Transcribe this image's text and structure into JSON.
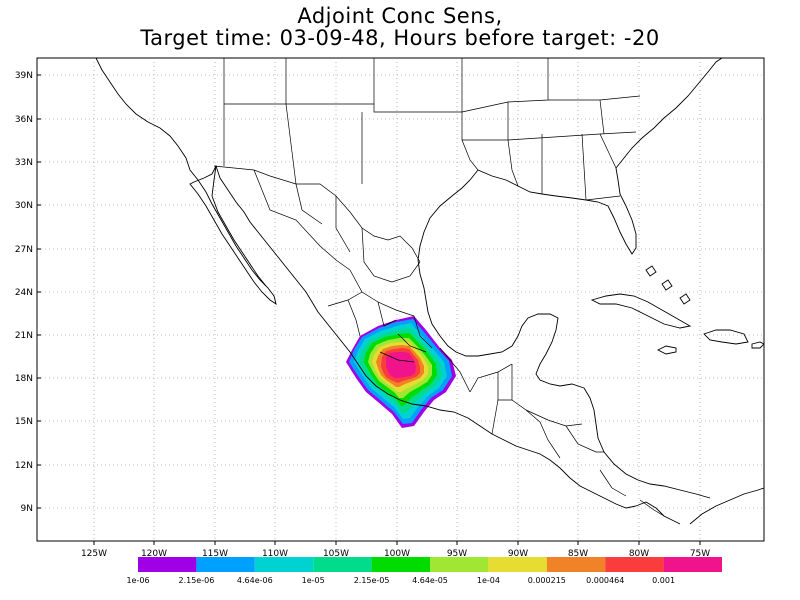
{
  "title": {
    "line1": "Adjoint Conc Sens,",
    "line2": "Target time: 03-09-48, Hours before target: -20"
  },
  "map": {
    "lon_range": [
      -128,
      -68
    ],
    "lat_range": [
      7,
      41
    ],
    "lat_ticks": [
      "39N",
      "36N",
      "33N",
      "30N",
      "27N",
      "24N",
      "21N",
      "18N",
      "15N",
      "12N",
      "9N"
    ],
    "lon_ticks": [
      "125W",
      "120W",
      "115W",
      "110W",
      "105W",
      "100W",
      "95W",
      "90W",
      "85W",
      "80W",
      "75W"
    ],
    "grid": "dotted"
  },
  "legend": {
    "labels": [
      "1e-06",
      "2.15e-06",
      "4.64e-06",
      "1e-05",
      "2.15e-05",
      "4.64e-05",
      "1e-04",
      "0.000215",
      "0.000464",
      "0.001"
    ],
    "colors": [
      "#a000e6",
      "#00a0ff",
      "#00d2d2",
      "#00dc8c",
      "#00dc00",
      "#a0e632",
      "#e6dc32",
      "#f08228",
      "#fa3c3c",
      "#f0148c"
    ]
  },
  "plume": {
    "center": [
      "100W",
      "19N"
    ]
  }
}
